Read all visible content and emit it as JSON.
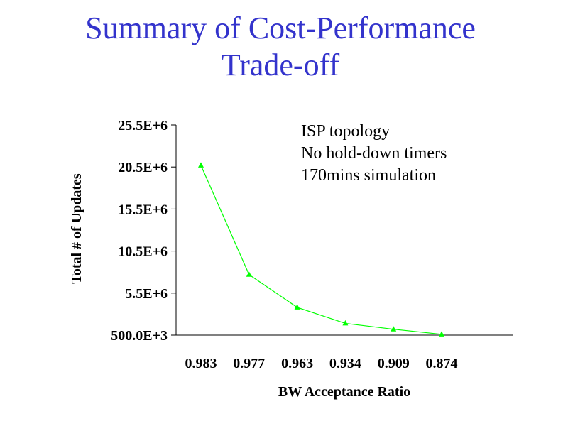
{
  "slide": {
    "title_line1": "Summary of Cost-Performance",
    "title_line2": "Trade-off"
  },
  "colors": {
    "title": "#3333cc",
    "series": "#00ff00",
    "axis": "#000000"
  },
  "chart_data": {
    "type": "line",
    "categories": [
      "0.983",
      "0.977",
      "0.963",
      "0.934",
      "0.909",
      "0.874"
    ],
    "series": [
      {
        "values": [
          20700000,
          7700000,
          3800000,
          1900000,
          1200000,
          600000
        ]
      }
    ],
    "y_ticks": [
      "500.0E+3",
      "5.5E+6",
      "10.5E+6",
      "15.5E+6",
      "20.5E+6",
      "25.5E+6"
    ],
    "y_tick_values": [
      500000,
      5500000,
      10500000,
      15500000,
      20500000,
      25500000
    ],
    "ylim": [
      500000,
      25500000
    ],
    "xlabel": "BW Acceptance Ratio",
    "ylabel": "Total # of Updates",
    "annotations": [
      "ISP topology",
      "No hold-down timers",
      "170mins simulation"
    ],
    "grid": false,
    "marker": "triangle"
  }
}
